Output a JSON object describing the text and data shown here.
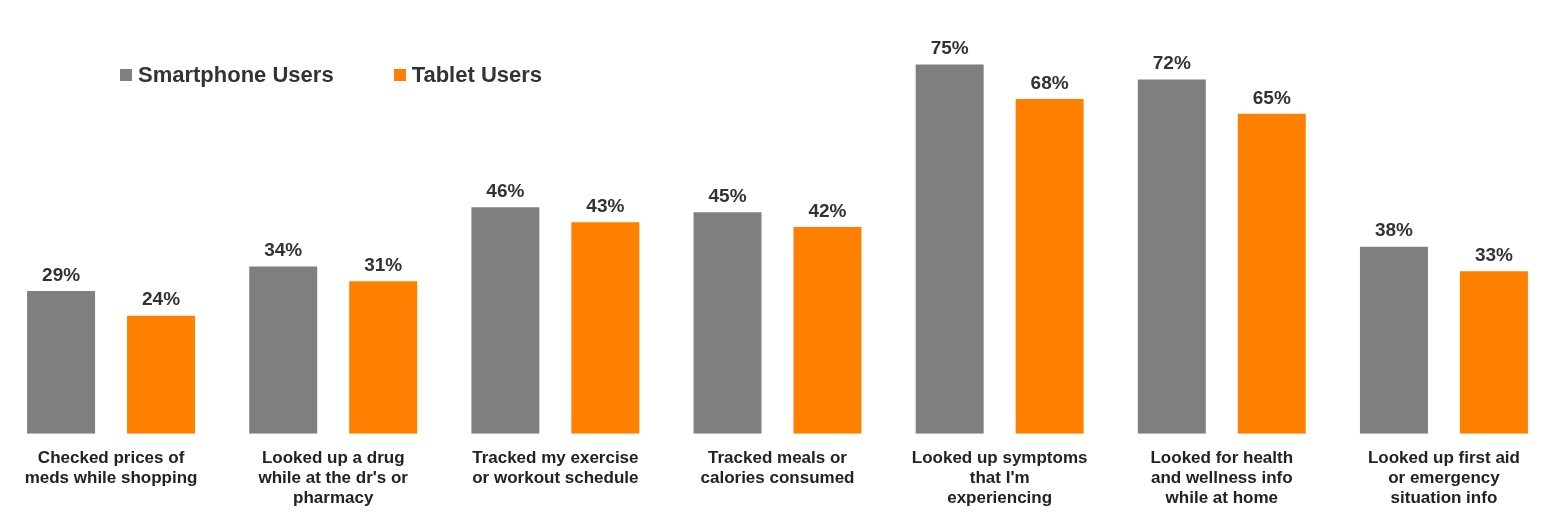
{
  "chart_data": {
    "type": "bar",
    "categories": [
      "Checked prices of meds while shopping",
      "Looked up a drug while at the dr's or pharmacy",
      "Tracked my exercise or workout schedule",
      "Tracked meals or calories consumed",
      "Looked up symptoms that I'm experiencing",
      "Looked for health and wellness info while at home",
      "Looked up first aid or emergency situation info"
    ],
    "series": [
      {
        "name": "Smartphone Users",
        "color": "#7f7f7f",
        "values": [
          29,
          34,
          46,
          45,
          75,
          72,
          38
        ],
        "value_labels": [
          "29%",
          "34%",
          "46%",
          "45%",
          "75%",
          "72%",
          "38%"
        ]
      },
      {
        "name": "Tablet Users",
        "color": "#ff7f00",
        "values": [
          24,
          31,
          43,
          42,
          68,
          65,
          33
        ],
        "value_labels": [
          "24%",
          "31%",
          "43%",
          "42%",
          "68%",
          "65%",
          "33%"
        ]
      }
    ],
    "legend": "top left",
    "grid": false,
    "tick_labels": "x"
  }
}
